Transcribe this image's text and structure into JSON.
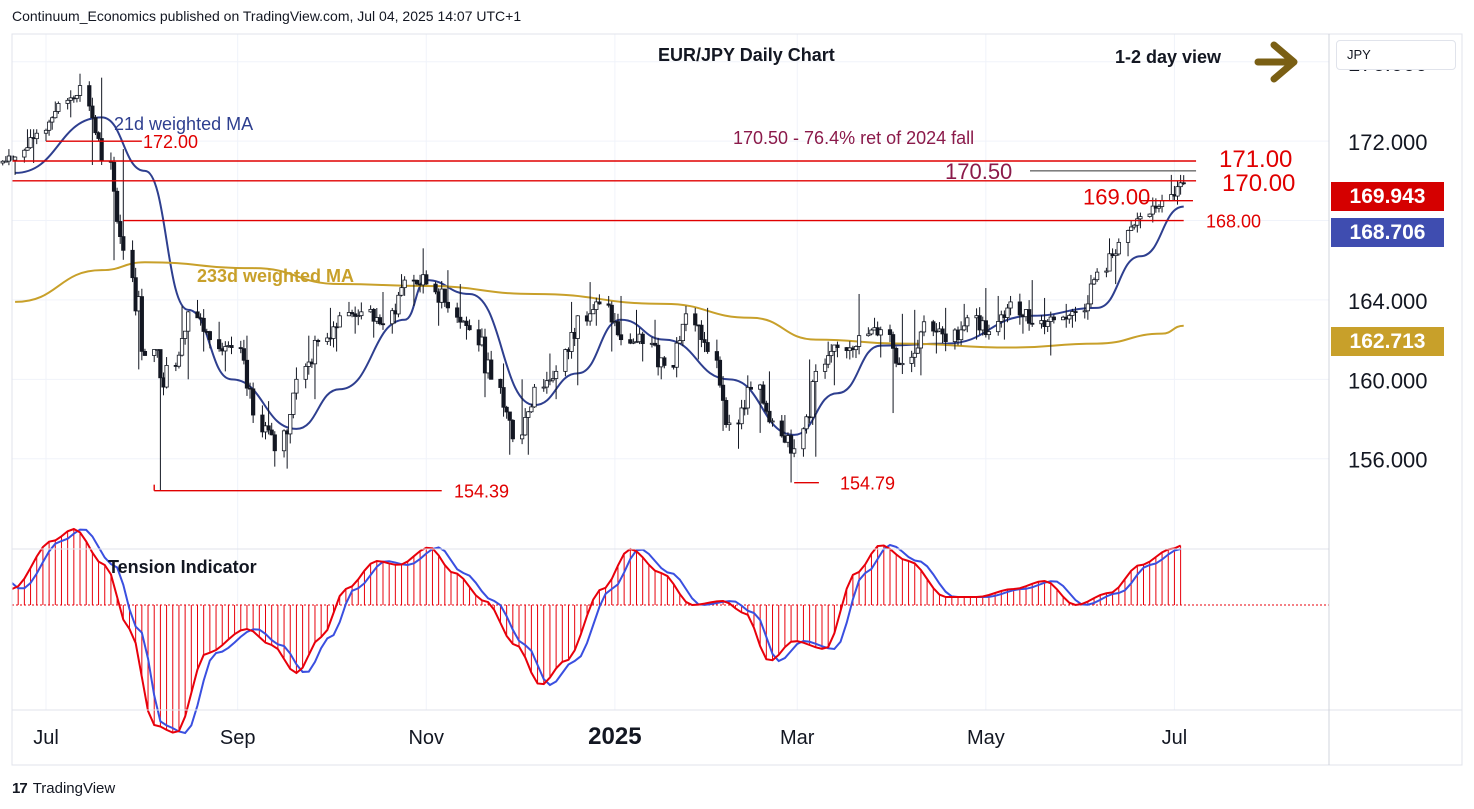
{
  "header": {
    "publisher_line": "Continuum_Economics published on TradingView.com, Jul 04, 2025 14:07 UTC+1"
  },
  "footer": {
    "brand": "TradingView",
    "logo": "tradingview-logo-icon"
  },
  "currency_selector": {
    "value": "JPY"
  },
  "price_badges": [
    {
      "value": "169.943",
      "color": "#d50000"
    },
    {
      "value": "168.706",
      "color": "#3f4db0"
    },
    {
      "value": "162.713",
      "color": "#c8a02a"
    }
  ],
  "colors": {
    "up": "#ffffff",
    "down": "#131722",
    "red": "#e00000",
    "ma21": "#2e3f8f",
    "ma233": "#c8a02a",
    "annotation": "#8b1a4a",
    "arrow": "#7a5f14"
  },
  "chart_data": [
    {
      "type": "candlestick",
      "title": "EUR/JPY Daily Chart",
      "view_label": "1-2 day view",
      "view_icon": "arrow-right-icon",
      "y_axis": {
        "unit": "JPY",
        "range": [
          151.5,
          177.4
        ],
        "ticks": [
          "176.000",
          "172.000",
          "164.000",
          "160.000",
          "156.000"
        ]
      },
      "x_axis": {
        "ticks": [
          "Jul",
          "Sep",
          "Nov",
          "2025",
          "Mar",
          "May",
          "Jul"
        ],
        "range": [
          "2024-06-20",
          "2025-08-20"
        ]
      },
      "grid": true,
      "ohlc_weekly_approx": [
        [
          "2024-06-21",
          170.9,
          171.6,
          170.3,
          171.2
        ],
        [
          "2024-06-28",
          171.2,
          172.6,
          170.9,
          172.4
        ],
        [
          "2024-07-05",
          172.4,
          174.0,
          172.0,
          173.9
        ],
        [
          "2024-07-12",
          173.9,
          175.4,
          173.2,
          174.8
        ],
        [
          "2024-07-19",
          174.8,
          175.2,
          170.8,
          171.0
        ],
        [
          "2024-07-26",
          171.0,
          171.6,
          166.0,
          166.5
        ],
        [
          "2024-08-02",
          166.5,
          167.0,
          160.5,
          161.2
        ],
        [
          "2024-08-09",
          161.2,
          161.5,
          154.4,
          160.7
        ],
        [
          "2024-08-16",
          160.7,
          163.7,
          160.0,
          163.4
        ],
        [
          "2024-08-23",
          163.4,
          164.0,
          161.4,
          162.0
        ],
        [
          "2024-08-30",
          162.0,
          162.9,
          160.4,
          161.6
        ],
        [
          "2024-09-06",
          161.6,
          162.2,
          157.8,
          158.2
        ],
        [
          "2024-09-13",
          158.2,
          158.9,
          155.6,
          156.4
        ],
        [
          "2024-09-20",
          156.4,
          160.6,
          155.5,
          160.0
        ],
        [
          "2024-09-27",
          160.0,
          162.2,
          159.0,
          161.9
        ],
        [
          "2024-10-04",
          161.9,
          163.6,
          161.4,
          163.2
        ],
        [
          "2024-10-11",
          163.2,
          163.9,
          162.3,
          163.4
        ],
        [
          "2024-10-18",
          163.4,
          164.4,
          162.1,
          162.8
        ],
        [
          "2024-10-25",
          162.8,
          165.3,
          162.3,
          165.0
        ],
        [
          "2024-11-01",
          165.0,
          166.6,
          163.7,
          164.8
        ],
        [
          "2024-11-08",
          164.8,
          165.5,
          162.7,
          163.6
        ],
        [
          "2024-11-15",
          163.6,
          164.8,
          162.0,
          162.5
        ],
        [
          "2024-11-22",
          162.5,
          163.0,
          159.1,
          160.0
        ],
        [
          "2024-11-29",
          160.0,
          160.8,
          156.2,
          157.0
        ],
        [
          "2024-12-06",
          157.0,
          160.0,
          156.2,
          159.6
        ],
        [
          "2024-12-13",
          159.6,
          161.3,
          159.0,
          160.4
        ],
        [
          "2024-12-20",
          160.4,
          163.9,
          159.7,
          163.2
        ],
        [
          "2024-12-27",
          163.2,
          164.9,
          162.7,
          163.8
        ],
        [
          "2025-01-03",
          163.8,
          164.2,
          161.4,
          162.0
        ],
        [
          "2025-01-10",
          162.0,
          163.5,
          160.9,
          161.8
        ],
        [
          "2025-01-17",
          161.8,
          163.0,
          160.0,
          160.7
        ],
        [
          "2025-01-24",
          160.7,
          163.7,
          160.1,
          163.3
        ],
        [
          "2025-01-31",
          163.3,
          163.6,
          161.0,
          161.4
        ],
        [
          "2025-02-07",
          161.4,
          162.0,
          157.4,
          157.8
        ],
        [
          "2025-02-14",
          157.8,
          160.2,
          156.5,
          159.5
        ],
        [
          "2025-02-21",
          159.5,
          160.4,
          157.3,
          157.9
        ],
        [
          "2025-02-28",
          157.9,
          158.2,
          154.8,
          156.5
        ],
        [
          "2025-03-07",
          156.5,
          161.0,
          156.1,
          160.4
        ],
        [
          "2025-03-14",
          160.4,
          161.9,
          159.7,
          161.6
        ],
        [
          "2025-03-21",
          161.6,
          164.3,
          161.0,
          162.2
        ],
        [
          "2025-03-28",
          162.2,
          163.1,
          161.1,
          162.5
        ],
        [
          "2025-04-04",
          162.5,
          163.3,
          158.3,
          160.8
        ],
        [
          "2025-04-11",
          160.8,
          163.5,
          160.2,
          162.9
        ],
        [
          "2025-04-18",
          162.9,
          163.6,
          161.3,
          161.9
        ],
        [
          "2025-04-25",
          161.9,
          163.8,
          161.5,
          163.1
        ],
        [
          "2025-05-02",
          163.1,
          164.6,
          162.0,
          162.4
        ],
        [
          "2025-05-09",
          162.4,
          164.2,
          162.0,
          163.9
        ],
        [
          "2025-05-16",
          163.9,
          165.0,
          162.3,
          162.8
        ],
        [
          "2025-05-23",
          162.8,
          164.1,
          161.2,
          163.0
        ],
        [
          "2025-05-30",
          163.0,
          163.8,
          162.6,
          163.4
        ],
        [
          "2025-06-06",
          163.4,
          165.6,
          163.0,
          165.4
        ],
        [
          "2025-06-13",
          165.4,
          167.1,
          164.8,
          166.9
        ],
        [
          "2025-06-20",
          166.9,
          168.4,
          166.2,
          168.2
        ],
        [
          "2025-06-27",
          168.2,
          169.3,
          167.9,
          169.0
        ],
        [
          "2025-07-04",
          169.0,
          170.3,
          168.8,
          169.9
        ]
      ],
      "indicators": [
        {
          "name": "21d weighted MA",
          "last": 168.706,
          "approx": [
            [
              "2024-06-21",
              170.4
            ],
            [
              "2024-07-19",
              173.2
            ],
            [
              "2024-08-02",
              170.5
            ],
            [
              "2024-08-16",
              163.5
            ],
            [
              "2024-08-30",
              160.0
            ],
            [
              "2024-09-20",
              157.5
            ],
            [
              "2024-10-04",
              159.5
            ],
            [
              "2024-10-25",
              163.0
            ],
            [
              "2024-11-01",
              165.0
            ],
            [
              "2024-11-15",
              164.3
            ],
            [
              "2024-12-06",
              158.7
            ],
            [
              "2024-12-20",
              160.3
            ],
            [
              "2025-01-03",
              163.0
            ],
            [
              "2025-01-17",
              162.0
            ],
            [
              "2025-02-07",
              160.0
            ],
            [
              "2025-02-28",
              157.2
            ],
            [
              "2025-03-14",
              159.3
            ],
            [
              "2025-03-28",
              161.7
            ],
            [
              "2025-04-18",
              161.8
            ],
            [
              "2025-05-16",
              163.2
            ],
            [
              "2025-06-06",
              163.6
            ],
            [
              "2025-06-20",
              166.2
            ],
            [
              "2025-07-04",
              168.7
            ]
          ]
        },
        {
          "name": "233d weighted MA",
          "last": 162.713,
          "approx": [
            [
              "2024-06-21",
              163.9
            ],
            [
              "2024-07-19",
              165.5
            ],
            [
              "2024-08-02",
              165.9
            ],
            [
              "2024-09-06",
              165.6
            ],
            [
              "2024-10-04",
              164.8
            ],
            [
              "2024-11-01",
              164.7
            ],
            [
              "2024-12-06",
              164.3
            ],
            [
              "2025-01-17",
              163.8
            ],
            [
              "2025-02-14",
              163.1
            ],
            [
              "2025-03-07",
              162.0
            ],
            [
              "2025-04-04",
              161.8
            ],
            [
              "2025-05-09",
              161.6
            ],
            [
              "2025-06-06",
              161.8
            ],
            [
              "2025-06-27",
              162.3
            ],
            [
              "2025-07-04",
              162.7
            ]
          ]
        }
      ],
      "levels": [
        {
          "label": "172.00",
          "price": 172.0,
          "from": "2024-07-01",
          "to": "2024-08-01"
        },
        {
          "label": "171.00",
          "price": 171.0,
          "from": "2024-06-20",
          "to": "2025-07-08"
        },
        {
          "label": "170.00",
          "price": 170.0,
          "from": "2024-06-20",
          "to": "2025-07-08"
        },
        {
          "label": "169.00",
          "price": 169.0,
          "from": "2025-06-20",
          "to": "2025-07-07"
        },
        {
          "label": "168.00",
          "price": 168.0,
          "from": "2024-07-26",
          "to": "2025-07-04"
        },
        {
          "label": "154.39",
          "price": 154.39,
          "from": "2024-08-05",
          "to": "2024-11-06"
        },
        {
          "label": "154.79",
          "price": 154.79,
          "from": "2025-02-28",
          "to": "2025-03-08"
        }
      ],
      "annotation": {
        "label": "170.50",
        "note": "170.50 - 76.4% ret of 2024 fall",
        "price": 170.5
      }
    },
    {
      "type": "oscillator",
      "title": "Tension Indicator",
      "approx": [
        [
          "2024-06-20",
          0.2
        ],
        [
          "2024-07-03",
          0.8
        ],
        [
          "2024-07-10",
          0.95
        ],
        [
          "2024-07-20",
          0.5
        ],
        [
          "2024-07-28",
          -0.3
        ],
        [
          "2024-08-05",
          -1.5
        ],
        [
          "2024-08-12",
          -1.6
        ],
        [
          "2024-08-22",
          -0.6
        ],
        [
          "2024-09-04",
          -0.3
        ],
        [
          "2024-09-12",
          -0.5
        ],
        [
          "2024-09-20",
          -0.85
        ],
        [
          "2024-09-28",
          -0.4
        ],
        [
          "2024-10-06",
          0.2
        ],
        [
          "2024-10-16",
          0.55
        ],
        [
          "2024-10-23",
          0.5
        ],
        [
          "2024-11-02",
          0.72
        ],
        [
          "2024-11-10",
          0.4
        ],
        [
          "2024-11-20",
          0.05
        ],
        [
          "2024-11-30",
          -0.5
        ],
        [
          "2024-12-08",
          -1.0
        ],
        [
          "2024-12-16",
          -0.7
        ],
        [
          "2024-12-28",
          0.2
        ],
        [
          "2025-01-06",
          0.7
        ],
        [
          "2025-01-16",
          0.4
        ],
        [
          "2025-01-26",
          0.0
        ],
        [
          "2025-02-05",
          0.05
        ],
        [
          "2025-02-12",
          -0.1
        ],
        [
          "2025-02-20",
          -0.7
        ],
        [
          "2025-02-28",
          -0.45
        ],
        [
          "2025-03-10",
          -0.55
        ],
        [
          "2025-03-20",
          0.4
        ],
        [
          "2025-03-28",
          0.75
        ],
        [
          "2025-04-06",
          0.55
        ],
        [
          "2025-04-18",
          0.1
        ],
        [
          "2025-04-28",
          0.1
        ],
        [
          "2025-05-10",
          0.2
        ],
        [
          "2025-05-20",
          0.3
        ],
        [
          "2025-05-30",
          0.0
        ],
        [
          "2025-06-10",
          0.15
        ],
        [
          "2025-06-20",
          0.5
        ],
        [
          "2025-06-30",
          0.7
        ],
        [
          "2025-07-04",
          0.75
        ]
      ]
    }
  ]
}
